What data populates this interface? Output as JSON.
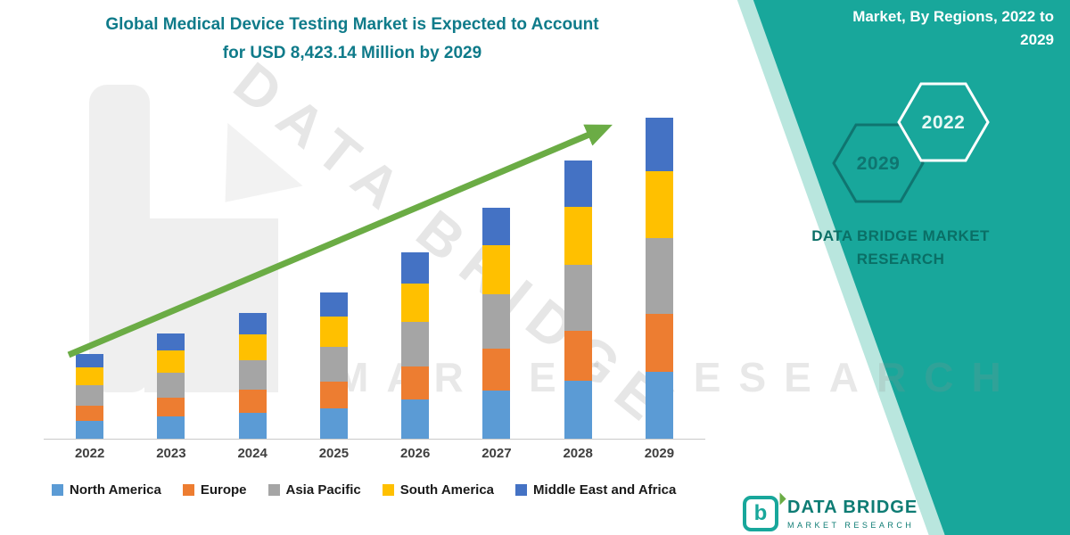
{
  "colors": {
    "panel_teal": "#18A79B",
    "panel_stripe": "#b9e6de",
    "title_teal": "#0F7B8A",
    "brand_teal": "#0A6F66",
    "arrow_green": "#6BAC45"
  },
  "header": {
    "title_line1": "Global Medical Device Testing Market is Expected to Account",
    "title_line2": "for USD 8,423.14 Million by 2029"
  },
  "side_panel": {
    "heading_line1": "Market, By Regions, 2022 to",
    "heading_line2": "2029",
    "hexagon_back_label": "2029",
    "hexagon_front_label": "2022",
    "brand_line1": "DATA BRIDGE MARKET",
    "brand_line2": "RESEARCH"
  },
  "watermarks": {
    "diagonal": "DATA BRIDGE",
    "horizontal": "MARKET RESEARCH"
  },
  "footer_logo": {
    "monogram": "b",
    "name": "DATA BRIDGE",
    "subtext": "MARKET RESEARCH"
  },
  "chart_data": {
    "type": "bar",
    "stacked": true,
    "title": "Global Medical Device Testing Market is Expected to Account for USD 8,423.14 Million by 2029",
    "unit": "USD Million",
    "categories": [
      "2022",
      "2023",
      "2024",
      "2025",
      "2026",
      "2027",
      "2028",
      "2029"
    ],
    "series": [
      {
        "name": "North America",
        "color": "#5B9BD5",
        "values": [
          470,
          580,
          690,
          805,
          1025,
          1275,
          1530,
          1765
        ]
      },
      {
        "name": "Europe",
        "color": "#ED7D31",
        "values": [
          400,
          500,
          590,
          690,
          880,
          1090,
          1310,
          1515
        ]
      },
      {
        "name": "Asia Pacific",
        "color": "#A5A5A5",
        "values": [
          525,
          650,
          775,
          905,
          1150,
          1430,
          1715,
          1980
        ]
      },
      {
        "name": "South America",
        "color": "#FFC000",
        "values": [
          470,
          580,
          690,
          805,
          1025,
          1275,
          1530,
          1765
        ]
      },
      {
        "name": "Middle East and Africa",
        "color": "#4472C4",
        "values": [
          370,
          450,
          545,
          635,
          810,
          1000,
          1205,
          1398.14
        ]
      }
    ],
    "totals": [
      2235,
      2760,
      3290,
      3840,
      4890,
      6070,
      7290,
      8423.14
    ],
    "ylim": [
      0,
      8500
    ],
    "legend_position": "bottom",
    "grid": false,
    "annotations": [
      "green upward trend arrow from 2022 to 2029"
    ]
  }
}
